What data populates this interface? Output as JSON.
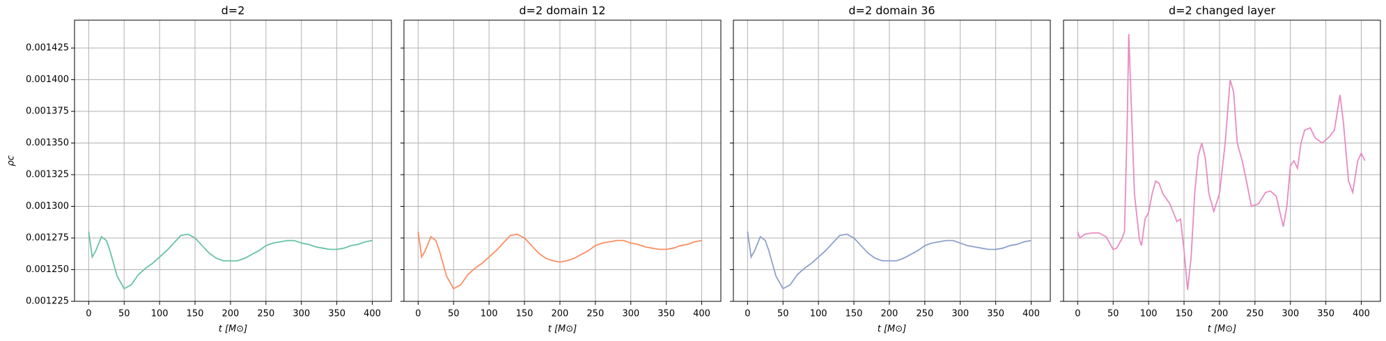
{
  "chart_data": [
    {
      "type": "line",
      "title": "d=2",
      "ylabel": "ρc",
      "xlabel": "t [M⊙]",
      "color": "#66c2a5",
      "grid": true,
      "xlim": [
        -20,
        427
      ],
      "xticks": [
        0,
        50,
        100,
        150,
        200,
        250,
        300,
        350,
        400
      ],
      "ylim": [
        0.001225,
        0.001447
      ],
      "yticks": [
        0.001225,
        {
          "value": 0.00125,
          "label": "0.001250"
        },
        0.001275,
        {
          "value": 0.0013,
          "label": "0.001300"
        },
        0.001325,
        {
          "value": 0.00135,
          "label": "0.001350"
        },
        0.001375,
        {
          "value": 0.0014,
          "label": "0.001400"
        },
        0.001425
      ],
      "x": [
        0,
        5,
        10,
        18,
        25,
        30,
        40,
        50,
        60,
        70,
        80,
        90,
        100,
        110,
        120,
        130,
        140,
        150,
        160,
        170,
        180,
        190,
        200,
        210,
        220,
        230,
        240,
        250,
        260,
        270,
        280,
        290,
        300,
        310,
        320,
        330,
        340,
        350,
        360,
        370,
        380,
        390,
        400
      ],
      "values": [
        0.00128,
        0.00126,
        0.001265,
        0.001276,
        0.001273,
        0.001265,
        0.001245,
        0.001235,
        0.001238,
        0.001246,
        0.001251,
        0.001255,
        0.00126,
        0.001265,
        0.001271,
        0.001277,
        0.001278,
        0.001275,
        0.001269,
        0.001263,
        0.001259,
        0.001257,
        0.001257,
        0.001257,
        0.001259,
        0.001262,
        0.001265,
        0.001269,
        0.001271,
        0.001272,
        0.001273,
        0.001273,
        0.001271,
        0.00127,
        0.001268,
        0.001267,
        0.001266,
        0.001266,
        0.001267,
        0.001269,
        0.00127,
        0.001272,
        0.001273
      ]
    },
    {
      "type": "line",
      "title": "d=2 domain 12",
      "xlabel": "t [M⊙]",
      "color": "#fc8d62",
      "grid": true,
      "xlim": [
        -20,
        427
      ],
      "xticks": [
        0,
        50,
        100,
        150,
        200,
        250,
        300,
        350,
        400
      ],
      "x": [
        0,
        5,
        10,
        18,
        25,
        30,
        40,
        50,
        60,
        70,
        80,
        90,
        100,
        110,
        120,
        130,
        140,
        150,
        160,
        170,
        180,
        190,
        200,
        210,
        220,
        230,
        240,
        250,
        260,
        270,
        280,
        290,
        300,
        310,
        320,
        330,
        340,
        350,
        360,
        370,
        380,
        390,
        400
      ],
      "values": [
        0.00128,
        0.00126,
        0.001265,
        0.001276,
        0.001273,
        0.001265,
        0.001245,
        0.001235,
        0.001238,
        0.001246,
        0.001251,
        0.001255,
        0.00126,
        0.001265,
        0.001271,
        0.001277,
        0.001278,
        0.001275,
        0.001269,
        0.001263,
        0.001259,
        0.001257,
        0.001256,
        0.001257,
        0.001259,
        0.001262,
        0.001265,
        0.001269,
        0.001271,
        0.001272,
        0.001273,
        0.001273,
        0.001271,
        0.00127,
        0.001268,
        0.001267,
        0.001266,
        0.001266,
        0.001267,
        0.001269,
        0.00127,
        0.001272,
        0.001273
      ]
    },
    {
      "type": "line",
      "title": "d=2 domain 36",
      "xlabel": "t [M⊙]",
      "color": "#8da0cb",
      "grid": true,
      "xlim": [
        -20,
        427
      ],
      "xticks": [
        0,
        50,
        100,
        150,
        200,
        250,
        300,
        350,
        400
      ],
      "x": [
        0,
        5,
        10,
        18,
        25,
        30,
        40,
        50,
        60,
        70,
        80,
        90,
        100,
        110,
        120,
        130,
        140,
        150,
        160,
        170,
        180,
        190,
        200,
        210,
        220,
        230,
        240,
        250,
        260,
        270,
        280,
        290,
        300,
        310,
        320,
        330,
        340,
        350,
        360,
        370,
        380,
        390,
        400
      ],
      "values": [
        0.00128,
        0.00126,
        0.001265,
        0.001276,
        0.001273,
        0.001265,
        0.001245,
        0.001235,
        0.001238,
        0.001246,
        0.001251,
        0.001255,
        0.00126,
        0.001265,
        0.001271,
        0.001277,
        0.001278,
        0.001275,
        0.001269,
        0.001263,
        0.001259,
        0.001257,
        0.001257,
        0.001257,
        0.001259,
        0.001262,
        0.001265,
        0.001269,
        0.001271,
        0.001272,
        0.001273,
        0.001273,
        0.001271,
        0.001269,
        0.001268,
        0.001267,
        0.001266,
        0.001266,
        0.001267,
        0.001269,
        0.00127,
        0.001272,
        0.001273
      ]
    },
    {
      "type": "line",
      "title": "d=2 changed layer",
      "xlabel": "t [M⊙]",
      "color": "#e78ac3",
      "grid": true,
      "xlim": [
        -20,
        427
      ],
      "xticks": [
        0,
        50,
        100,
        150,
        200,
        250,
        300,
        350,
        400
      ],
      "x": [
        0,
        3,
        10,
        20,
        30,
        40,
        50,
        55,
        62,
        66,
        70,
        72,
        75,
        80,
        87,
        90,
        95,
        100,
        105,
        110,
        115,
        120,
        130,
        140,
        145,
        150,
        155,
        160,
        165,
        170,
        175,
        180,
        185,
        192,
        200,
        208,
        215,
        220,
        225,
        232,
        238,
        245,
        255,
        265,
        272,
        280,
        285,
        290,
        295,
        300,
        305,
        310,
        315,
        320,
        328,
        335,
        345,
        355,
        362,
        370,
        375,
        382,
        388,
        395,
        400,
        405
      ],
      "values": [
        0.00128,
        0.001275,
        0.001278,
        0.001279,
        0.001279,
        0.001276,
        0.001266,
        0.001267,
        0.001274,
        0.00128,
        0.00137,
        0.001436,
        0.00139,
        0.00131,
        0.001274,
        0.001269,
        0.00129,
        0.001295,
        0.00131,
        0.00132,
        0.001318,
        0.00131,
        0.001302,
        0.001288,
        0.00129,
        0.001265,
        0.001234,
        0.00126,
        0.00131,
        0.00134,
        0.00135,
        0.001338,
        0.00131,
        0.001296,
        0.00131,
        0.00135,
        0.0014,
        0.00139,
        0.00135,
        0.001336,
        0.00132,
        0.0013,
        0.001302,
        0.001311,
        0.001312,
        0.001308,
        0.001296,
        0.001284,
        0.0013,
        0.001332,
        0.001336,
        0.00133,
        0.00135,
        0.00136,
        0.001362,
        0.001354,
        0.00135,
        0.001355,
        0.00136,
        0.001388,
        0.001365,
        0.00132,
        0.001311,
        0.001336,
        0.001342,
        0.001336
      ]
    }
  ]
}
